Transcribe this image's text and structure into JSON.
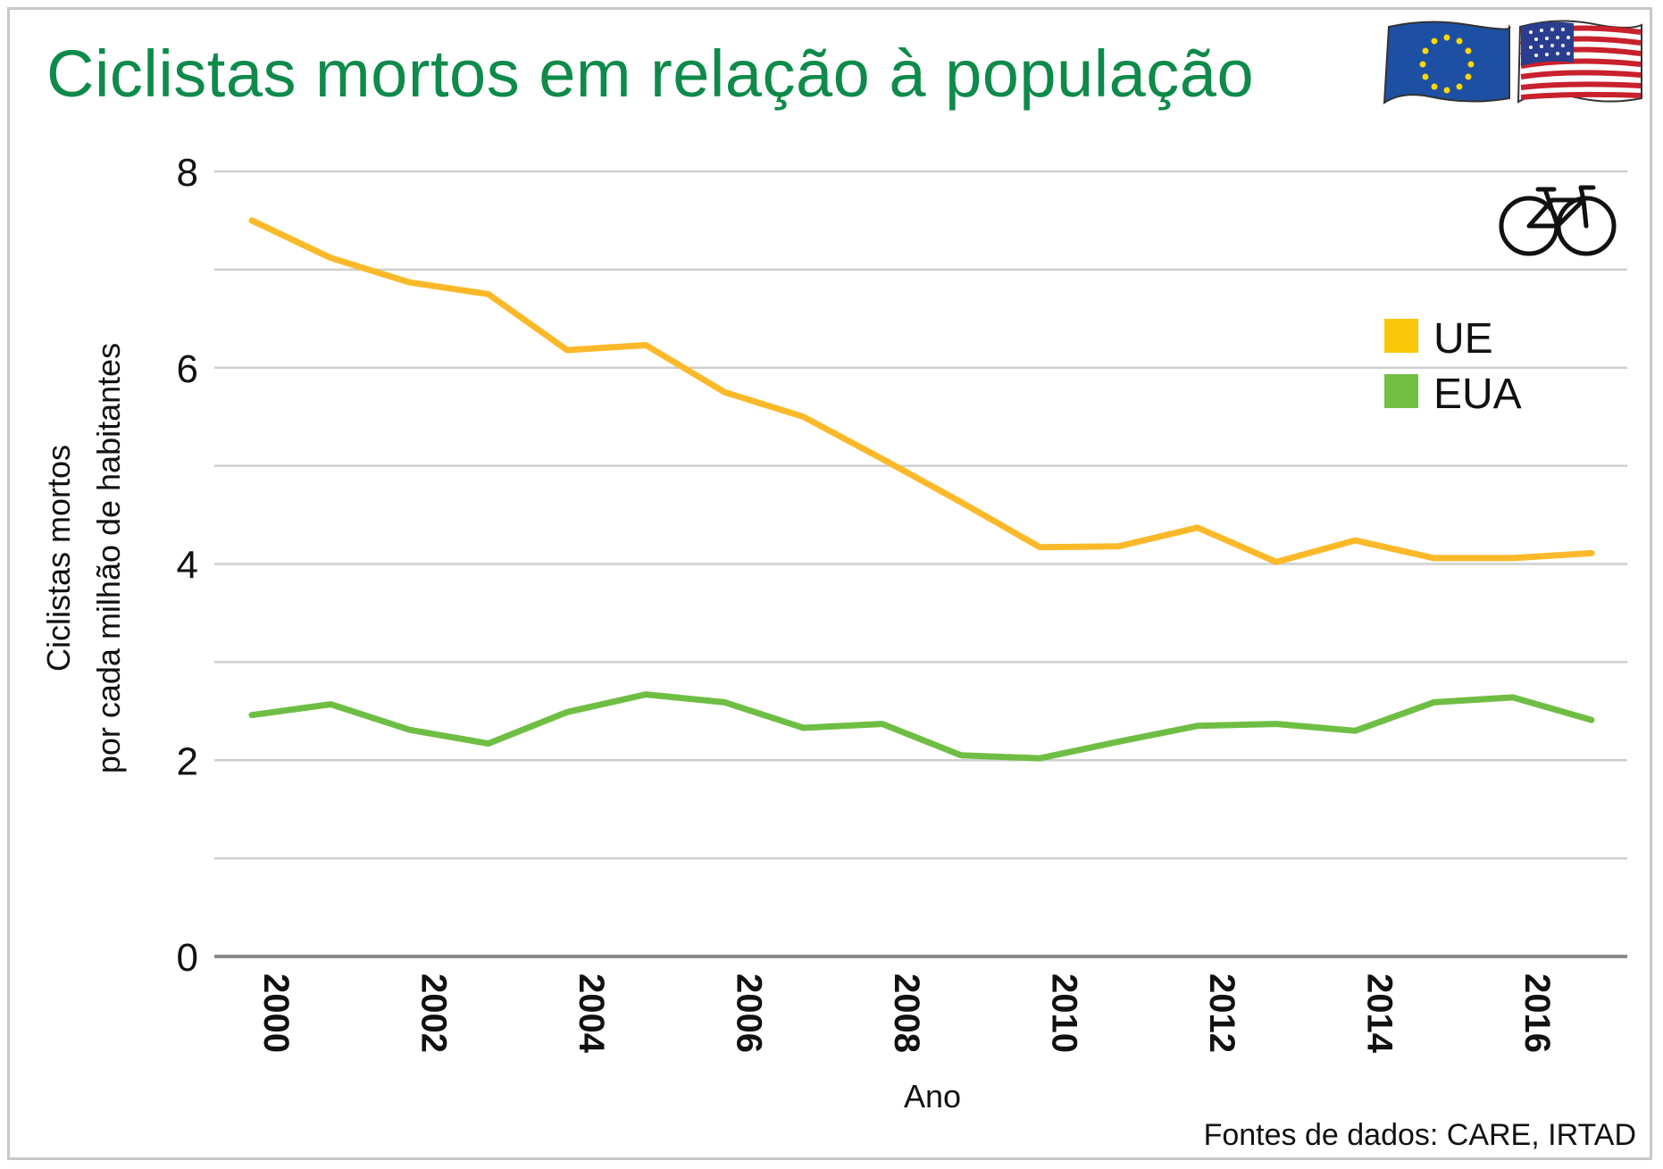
{
  "chart_data": {
    "type": "line",
    "title": "Ciclistas mortos em relação à população",
    "xlabel": "Ano",
    "ylabel_lines": [
      "Ciclistas mortos",
      "por cada milhão de habitantes"
    ],
    "x": [
      2000,
      2001,
      2002,
      2003,
      2004,
      2005,
      2006,
      2007,
      2008,
      2009,
      2010,
      2011,
      2012,
      2013,
      2014,
      2015,
      2016,
      2017
    ],
    "x_ticks": [
      "2000",
      "2002",
      "2004",
      "2006",
      "2008",
      "2010",
      "2012",
      "2014",
      "2016"
    ],
    "y_ticks": [
      "0",
      "2",
      "4",
      "6",
      "8"
    ],
    "ylim": [
      0,
      8
    ],
    "grid": true,
    "series": [
      {
        "name": "UE",
        "color": "#fbb929",
        "values": [
          7.5,
          7.12,
          6.87,
          6.75,
          6.18,
          6.23,
          5.75,
          5.5,
          5.07,
          4.63,
          4.17,
          4.18,
          4.37,
          4.02,
          4.24,
          4.06,
          4.06,
          4.11
        ]
      },
      {
        "name": "EUA",
        "color": "#6fbe44",
        "values": [
          2.46,
          2.57,
          2.31,
          2.17,
          2.49,
          2.67,
          2.59,
          2.33,
          2.37,
          2.05,
          2.02,
          2.19,
          2.35,
          2.37,
          2.3,
          2.59,
          2.64,
          2.41
        ]
      }
    ],
    "legend": {
      "position": "top-right",
      "items": [
        {
          "label": "UE",
          "color": "#fbc709"
        },
        {
          "label": "EUA",
          "color": "#72bf44"
        }
      ]
    },
    "source": "Fontes de dados: CARE, IRTAD"
  },
  "icons": {
    "flags": [
      "eu-flag-icon",
      "us-flag-icon"
    ],
    "bicycle": "bicycle-icon"
  },
  "colors": {
    "title": "#0e8a4a",
    "grid": "#cfcfcf",
    "axis": "#8a8a8a"
  }
}
